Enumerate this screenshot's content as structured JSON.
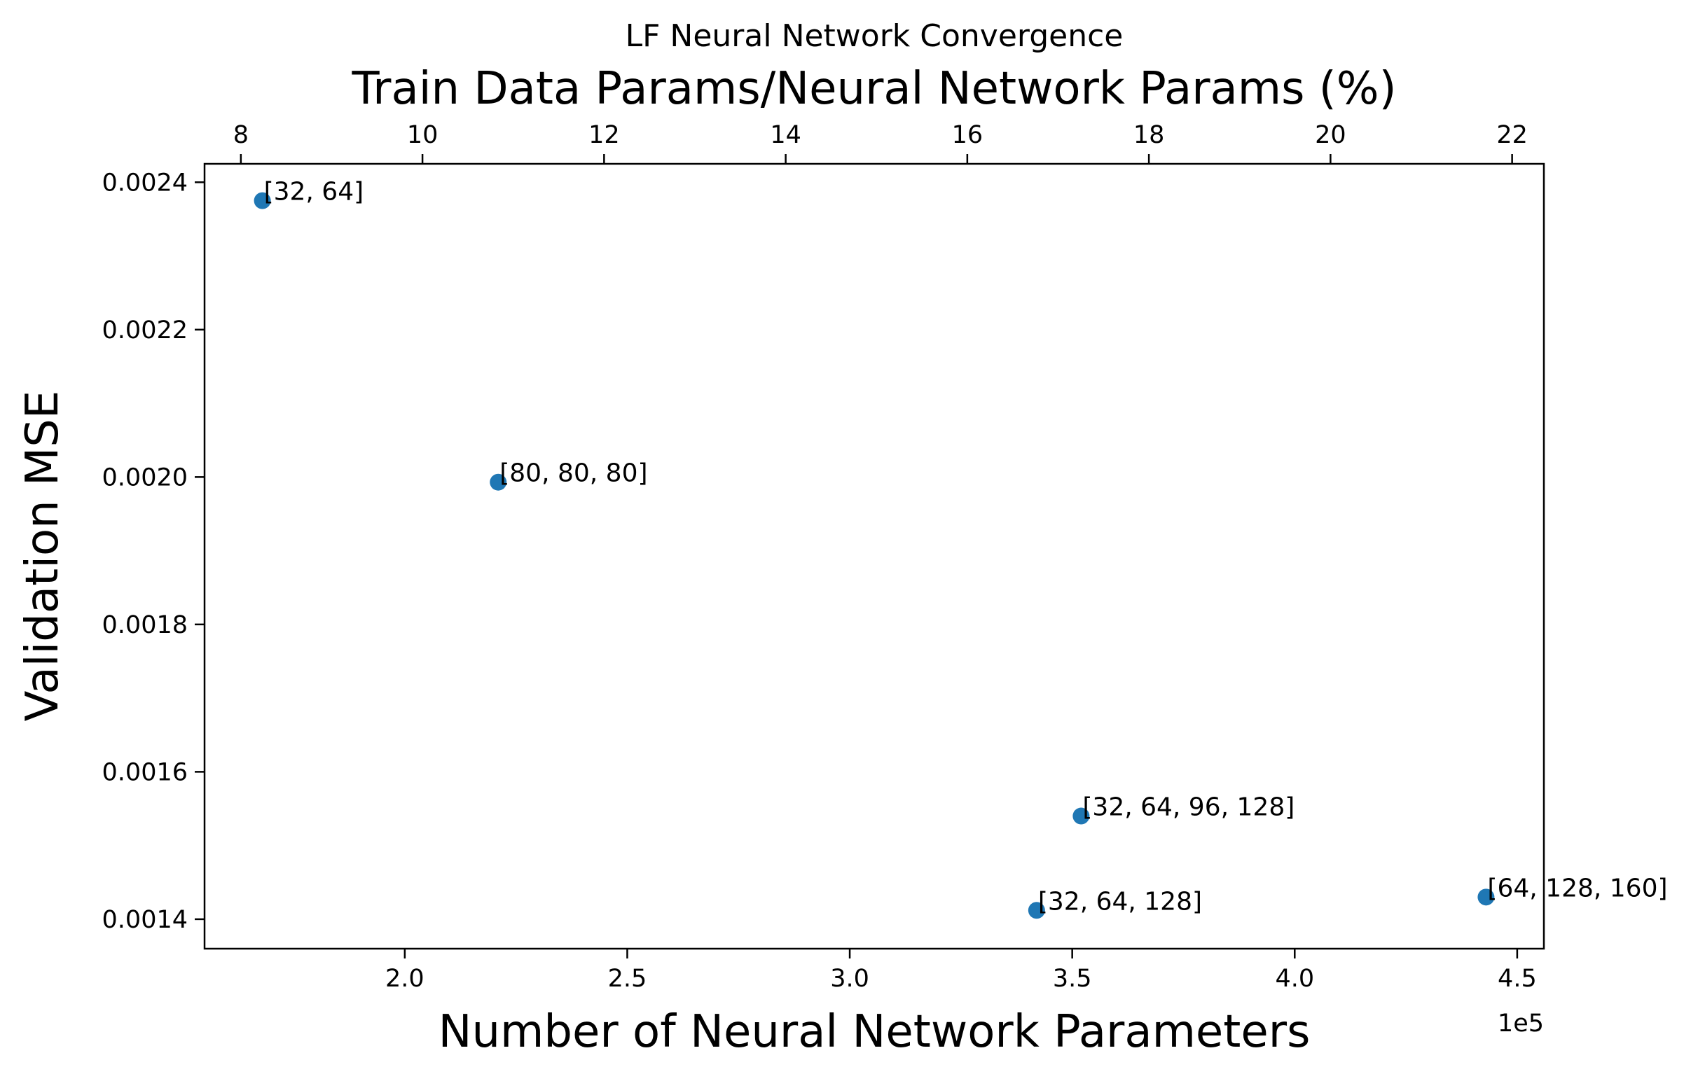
{
  "chart_data": {
    "type": "scatter",
    "title": "LF Neural Network Convergence",
    "xlabel": "Number of Neural Network Parameters",
    "x_offset_text": "1e5",
    "x2label": "Train Data Params/Neural Network Params (%)",
    "ylabel": "Validation MSE",
    "xlim": [
      1.55,
      4.56
    ],
    "x2lim": [
      7.6,
      22.35
    ],
    "ylim": [
      0.00136,
      0.002425
    ],
    "x_ticks": [
      2.0,
      2.5,
      3.0,
      3.5,
      4.0,
      4.5
    ],
    "x_tick_labels": [
      "2.0",
      "2.5",
      "3.0",
      "3.5",
      "4.0",
      "4.5"
    ],
    "x2_ticks": [
      8,
      10,
      12,
      14,
      16,
      18,
      20,
      22
    ],
    "x2_tick_labels": [
      "8",
      "10",
      "12",
      "14",
      "16",
      "18",
      "20",
      "22"
    ],
    "y_ticks": [
      0.0014,
      0.0016,
      0.0018,
      0.002,
      0.0022,
      0.0024
    ],
    "y_tick_labels": [
      "0.0014",
      "0.0016",
      "0.0018",
      "0.0020",
      "0.0022",
      "0.0024"
    ],
    "grid": false,
    "marker_color": "#1f77b4",
    "points": [
      {
        "x": 1.68,
        "y": 0.002375,
        "label": "[32, 64]"
      },
      {
        "x": 2.21,
        "y": 0.001993,
        "label": "[80, 80, 80]"
      },
      {
        "x": 3.52,
        "y": 0.00154,
        "label": "[32, 64, 96, 128]"
      },
      {
        "x": 3.42,
        "y": 0.001412,
        "label": "[32, 64, 128]"
      },
      {
        "x": 4.43,
        "y": 0.00143,
        "label": "[64, 128, 160]"
      }
    ]
  }
}
